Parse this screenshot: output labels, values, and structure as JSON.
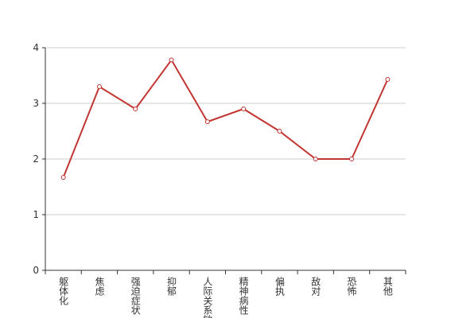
{
  "chart_data": {
    "type": "line",
    "categories": [
      "躯体化",
      "焦虑",
      "强迫症状",
      "抑郁",
      "人际关系敏感",
      "精神病性",
      "偏执",
      "敌对",
      "恐怖",
      "其他"
    ],
    "series": [
      {
        "color": "#c23531",
        "values": [
          1.67,
          3.3,
          2.9,
          3.78,
          2.67,
          2.9,
          2.5,
          2.0,
          2.0,
          3.43
        ]
      }
    ],
    "ylim": [
      0,
      4
    ],
    "yticks": [
      0,
      1,
      2,
      3,
      4
    ],
    "grid": true
  }
}
